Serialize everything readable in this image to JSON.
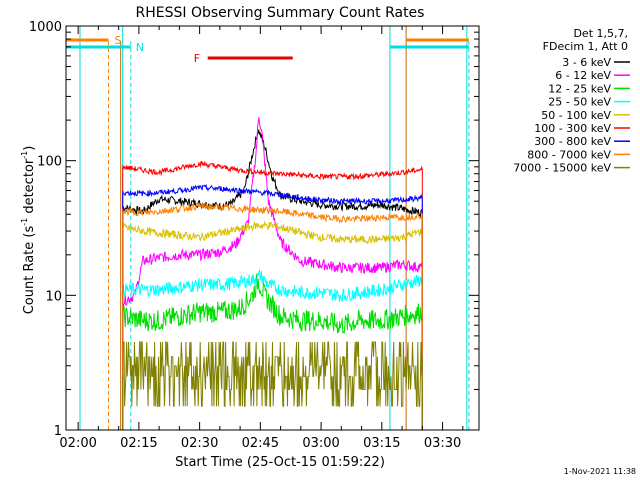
{
  "chart_data": {
    "type": "line",
    "title": "RHESSI Observing Summary Count Rates",
    "xlabel": "Start Time (25-Oct-15 01:59:22)",
    "ylabel": "Count Rate (s⁻¹ detector⁻¹)",
    "ylabel_main": "Count Rate (s",
    "ylabel_exp1": "-1",
    "ylabel_mid": " detector",
    "ylabel_exp2": "-1",
    "ylabel_end": ")",
    "x_range_minutes": [
      -3,
      99
    ],
    "y_range": [
      1,
      1000
    ],
    "y_scale": "log",
    "x_ticks": [
      {
        "t": 0,
        "label": "02:00"
      },
      {
        "t": 15,
        "label": "02:15"
      },
      {
        "t": 30,
        "label": "02:30"
      },
      {
        "t": 45,
        "label": "02:45"
      },
      {
        "t": 60,
        "label": "03:00"
      },
      {
        "t": 75,
        "label": "03:15"
      },
      {
        "t": 90,
        "label": "03:30"
      }
    ],
    "y_ticks": [
      {
        "v": 1,
        "label": "1"
      },
      {
        "v": 10,
        "label": "10"
      },
      {
        "v": 100,
        "label": "100"
      },
      {
        "v": 1000,
        "label": "1000"
      }
    ],
    "legend_header": [
      "Det 1,5,7,",
      "FDecim 1, Att 0"
    ],
    "legend_placement": "right",
    "series": [
      {
        "name": "3 - 6 keV",
        "color": "#000000",
        "points": [
          [
            11,
            45
          ],
          [
            16,
            42
          ],
          [
            20,
            52
          ],
          [
            25,
            50
          ],
          [
            30,
            48
          ],
          [
            35,
            46
          ],
          [
            38,
            48
          ],
          [
            41,
            60
          ],
          [
            43,
            110
          ],
          [
            44.5,
            170
          ],
          [
            46,
            130
          ],
          [
            48,
            75
          ],
          [
            50,
            55
          ],
          [
            55,
            50
          ],
          [
            60,
            47
          ],
          [
            65,
            46
          ],
          [
            70,
            46
          ],
          [
            75,
            47
          ],
          [
            80,
            44
          ],
          [
            85,
            41
          ]
        ]
      },
      {
        "name": "6 - 12 keV",
        "color": "#ff00ff",
        "points": [
          [
            11,
            9
          ],
          [
            14,
            10
          ],
          [
            16,
            18
          ],
          [
            20,
            19
          ],
          [
            25,
            20
          ],
          [
            30,
            20
          ],
          [
            35,
            21
          ],
          [
            39,
            24
          ],
          [
            42,
            35
          ],
          [
            44,
            120
          ],
          [
            44.6,
            220
          ],
          [
            45.5,
            150
          ],
          [
            47,
            50
          ],
          [
            50,
            25
          ],
          [
            55,
            18
          ],
          [
            60,
            17
          ],
          [
            65,
            16
          ],
          [
            70,
            16
          ],
          [
            75,
            16
          ],
          [
            80,
            17
          ],
          [
            85,
            16
          ]
        ]
      },
      {
        "name": "12 - 25 keV",
        "color": "#00dd00",
        "points": [
          [
            11,
            7
          ],
          [
            16,
            6.5
          ],
          [
            20,
            6.5
          ],
          [
            25,
            7
          ],
          [
            30,
            7.5
          ],
          [
            35,
            7.5
          ],
          [
            40,
            8
          ],
          [
            43,
            10
          ],
          [
            44.5,
            13
          ],
          [
            46,
            10
          ],
          [
            50,
            7
          ],
          [
            55,
            6.5
          ],
          [
            60,
            6.5
          ],
          [
            65,
            6
          ],
          [
            70,
            6.5
          ],
          [
            75,
            6.5
          ],
          [
            80,
            7
          ],
          [
            85,
            7.5
          ]
        ]
      },
      {
        "name": "25 - 50 keV",
        "color": "#00ffff",
        "points": [
          [
            11,
            11
          ],
          [
            16,
            11
          ],
          [
            20,
            11
          ],
          [
            25,
            11.5
          ],
          [
            30,
            12
          ],
          [
            35,
            12
          ],
          [
            40,
            12.5
          ],
          [
            43,
            13
          ],
          [
            45,
            14
          ],
          [
            47,
            12
          ],
          [
            50,
            11
          ],
          [
            55,
            10.5
          ],
          [
            60,
            10.5
          ],
          [
            65,
            10
          ],
          [
            70,
            10.5
          ],
          [
            75,
            11
          ],
          [
            80,
            12
          ],
          [
            85,
            13
          ]
        ]
      },
      {
        "name": "50 - 100 keV",
        "color": "#d8c000",
        "points": [
          [
            11,
            32
          ],
          [
            16,
            30
          ],
          [
            20,
            29
          ],
          [
            25,
            28
          ],
          [
            30,
            27
          ],
          [
            35,
            29
          ],
          [
            40,
            31
          ],
          [
            44,
            33
          ],
          [
            48,
            33
          ],
          [
            52,
            31
          ],
          [
            55,
            29
          ],
          [
            60,
            27
          ],
          [
            65,
            26
          ],
          [
            70,
            26
          ],
          [
            75,
            26
          ],
          [
            80,
            27
          ],
          [
            85,
            30
          ]
        ]
      },
      {
        "name": "100 - 300 keV",
        "color": "#ff0000",
        "points": [
          [
            11,
            90
          ],
          [
            16,
            85
          ],
          [
            20,
            82
          ],
          [
            25,
            88
          ],
          [
            30,
            95
          ],
          [
            35,
            90
          ],
          [
            40,
            85
          ],
          [
            45,
            82
          ],
          [
            50,
            80
          ],
          [
            55,
            78
          ],
          [
            60,
            76
          ],
          [
            65,
            76
          ],
          [
            70,
            77
          ],
          [
            75,
            79
          ],
          [
            80,
            82
          ],
          [
            85,
            86
          ]
        ]
      },
      {
        "name": "300 - 800 keV",
        "color": "#0000ff",
        "points": [
          [
            11,
            58
          ],
          [
            16,
            57
          ],
          [
            20,
            58
          ],
          [
            25,
            60
          ],
          [
            30,
            63
          ],
          [
            35,
            62
          ],
          [
            40,
            60
          ],
          [
            45,
            58
          ],
          [
            50,
            56
          ],
          [
            55,
            53
          ],
          [
            60,
            51
          ],
          [
            65,
            50
          ],
          [
            70,
            50
          ],
          [
            75,
            50
          ],
          [
            80,
            51
          ],
          [
            85,
            53
          ]
        ]
      },
      {
        "name": "800 - 7000 keV",
        "color": "#ff8000",
        "points": [
          [
            11,
            42
          ],
          [
            16,
            41
          ],
          [
            20,
            42
          ],
          [
            25,
            44
          ],
          [
            30,
            46
          ],
          [
            35,
            45
          ],
          [
            40,
            44
          ],
          [
            45,
            43
          ],
          [
            50,
            42
          ],
          [
            55,
            40
          ],
          [
            60,
            38
          ],
          [
            65,
            37
          ],
          [
            70,
            37
          ],
          [
            75,
            38
          ],
          [
            80,
            38
          ],
          [
            85,
            39
          ]
        ]
      },
      {
        "name": "7000 - 15000 keV",
        "color": "#808000",
        "points": [
          [
            11,
            2.5
          ],
          [
            16,
            2.5
          ],
          [
            20,
            2.5
          ],
          [
            25,
            2.5
          ],
          [
            30,
            2.5
          ],
          [
            35,
            2.5
          ],
          [
            40,
            2.5
          ],
          [
            45,
            2.5
          ],
          [
            50,
            2.5
          ],
          [
            55,
            2.5
          ],
          [
            60,
            2.5
          ],
          [
            65,
            2.5
          ],
          [
            70,
            2.5
          ],
          [
            75,
            2.5
          ],
          [
            80,
            2.5
          ],
          [
            85,
            2.5
          ]
        ]
      }
    ],
    "markers": {
      "saa_label": "S",
      "night_label": "N",
      "flare_label": "F",
      "flare_range": [
        32,
        53
      ]
    },
    "footer_date": "1-Nov-2021 11:38"
  }
}
